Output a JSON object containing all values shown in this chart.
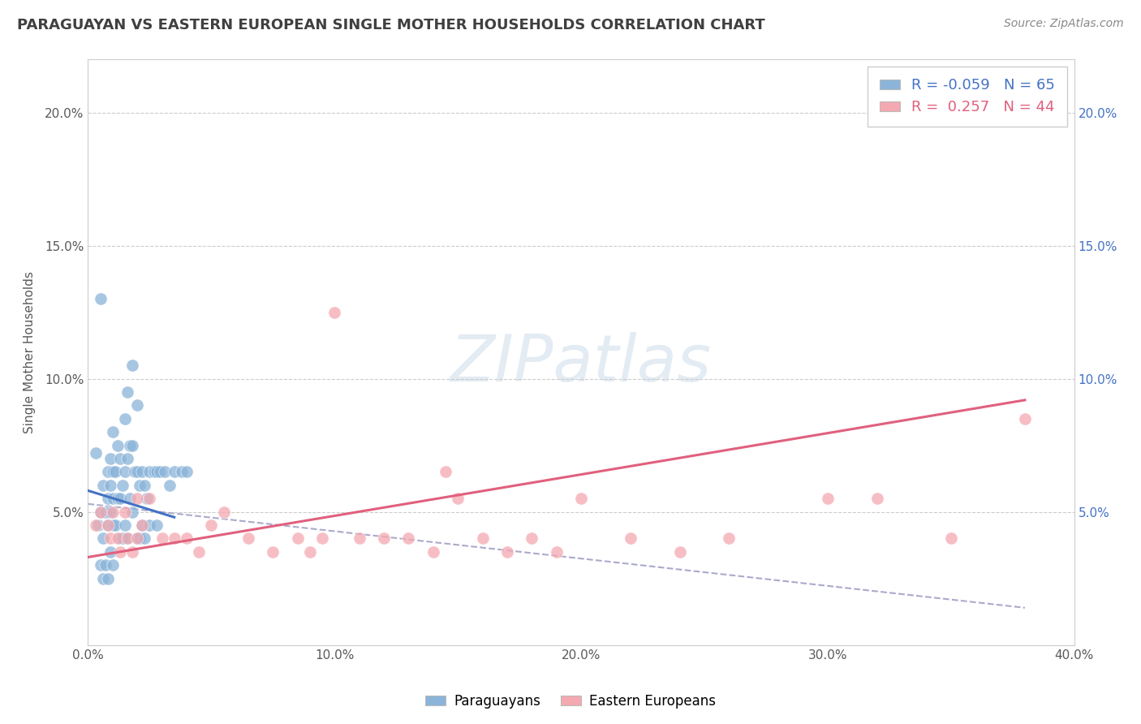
{
  "title": "PARAGUAYAN VS EASTERN EUROPEAN SINGLE MOTHER HOUSEHOLDS CORRELATION CHART",
  "source_text": "Source: ZipAtlas.com",
  "ylabel": "Single Mother Households",
  "xlim": [
    0.0,
    0.4
  ],
  "ylim": [
    0.0,
    0.22
  ],
  "xticks": [
    0.0,
    0.05,
    0.1,
    0.15,
    0.2,
    0.25,
    0.3,
    0.35,
    0.4
  ],
  "xticklabels": [
    "0.0%",
    "",
    "10.0%",
    "",
    "20.0%",
    "",
    "30.0%",
    "",
    "40.0%"
  ],
  "yticks": [
    0.0,
    0.05,
    0.1,
    0.15,
    0.2
  ],
  "yticklabels_left": [
    "",
    "5.0%",
    "10.0%",
    "15.0%",
    "20.0%"
  ],
  "yticklabels_right": [
    "",
    "5.0%",
    "10.0%",
    "15.0%",
    "20.0%"
  ],
  "blue_color": "#8ab4d9",
  "pink_color": "#f4a8b0",
  "blue_line_color": "#4472C4",
  "pink_line_color": "#E0607E",
  "dashed_line_color": "#aaaacc",
  "title_color": "#404040",
  "source_color": "#888888",
  "axis_label_color": "#595959",
  "tick_color_left": "#595959",
  "tick_color_right": "#4472C4",
  "legend_R1": "-0.059",
  "legend_N1": "65",
  "legend_R2": " 0.257",
  "legend_N2": "44",
  "blue_scatter_x": [
    0.003,
    0.004,
    0.005,
    0.005,
    0.006,
    0.006,
    0.006,
    0.007,
    0.007,
    0.008,
    0.008,
    0.008,
    0.008,
    0.009,
    0.009,
    0.009,
    0.009,
    0.01,
    0.01,
    0.01,
    0.01,
    0.01,
    0.011,
    0.011,
    0.012,
    0.012,
    0.013,
    0.013,
    0.013,
    0.014,
    0.014,
    0.015,
    0.015,
    0.015,
    0.016,
    0.016,
    0.016,
    0.017,
    0.017,
    0.018,
    0.018,
    0.018,
    0.019,
    0.02,
    0.02,
    0.02,
    0.021,
    0.021,
    0.022,
    0.022,
    0.023,
    0.023,
    0.024,
    0.025,
    0.025,
    0.027,
    0.028,
    0.028,
    0.029,
    0.031,
    0.033,
    0.035,
    0.038,
    0.04,
    0.005
  ],
  "blue_scatter_y": [
    0.072,
    0.045,
    0.05,
    0.03,
    0.06,
    0.04,
    0.025,
    0.05,
    0.03,
    0.065,
    0.055,
    0.045,
    0.025,
    0.07,
    0.06,
    0.05,
    0.035,
    0.08,
    0.065,
    0.055,
    0.045,
    0.03,
    0.065,
    0.045,
    0.075,
    0.055,
    0.07,
    0.055,
    0.04,
    0.06,
    0.04,
    0.085,
    0.065,
    0.045,
    0.095,
    0.07,
    0.04,
    0.075,
    0.055,
    0.105,
    0.075,
    0.05,
    0.065,
    0.09,
    0.065,
    0.04,
    0.06,
    0.04,
    0.065,
    0.045,
    0.06,
    0.04,
    0.055,
    0.065,
    0.045,
    0.065,
    0.065,
    0.045,
    0.065,
    0.065,
    0.06,
    0.065,
    0.065,
    0.065,
    0.13
  ],
  "pink_scatter_x": [
    0.003,
    0.005,
    0.008,
    0.009,
    0.01,
    0.012,
    0.013,
    0.015,
    0.016,
    0.018,
    0.02,
    0.02,
    0.022,
    0.025,
    0.03,
    0.035,
    0.04,
    0.045,
    0.05,
    0.055,
    0.065,
    0.075,
    0.085,
    0.09,
    0.095,
    0.1,
    0.11,
    0.12,
    0.13,
    0.14,
    0.145,
    0.15,
    0.16,
    0.17,
    0.18,
    0.19,
    0.2,
    0.22,
    0.24,
    0.26,
    0.3,
    0.32,
    0.35,
    0.38
  ],
  "pink_scatter_y": [
    0.045,
    0.05,
    0.045,
    0.04,
    0.05,
    0.04,
    0.035,
    0.05,
    0.04,
    0.035,
    0.055,
    0.04,
    0.045,
    0.055,
    0.04,
    0.04,
    0.04,
    0.035,
    0.045,
    0.05,
    0.04,
    0.035,
    0.04,
    0.035,
    0.04,
    0.125,
    0.04,
    0.04,
    0.04,
    0.035,
    0.065,
    0.055,
    0.04,
    0.035,
    0.04,
    0.035,
    0.055,
    0.04,
    0.035,
    0.04,
    0.055,
    0.055,
    0.04,
    0.085
  ],
  "blue_trendline_x": [
    0.0,
    0.035
  ],
  "blue_trendline_y": [
    0.058,
    0.048
  ],
  "pink_trendline_x": [
    0.0,
    0.38
  ],
  "pink_trendline_y": [
    0.033,
    0.092
  ],
  "dashed_trendline_x": [
    0.0,
    0.38
  ],
  "dashed_trendline_y": [
    0.053,
    0.014
  ]
}
